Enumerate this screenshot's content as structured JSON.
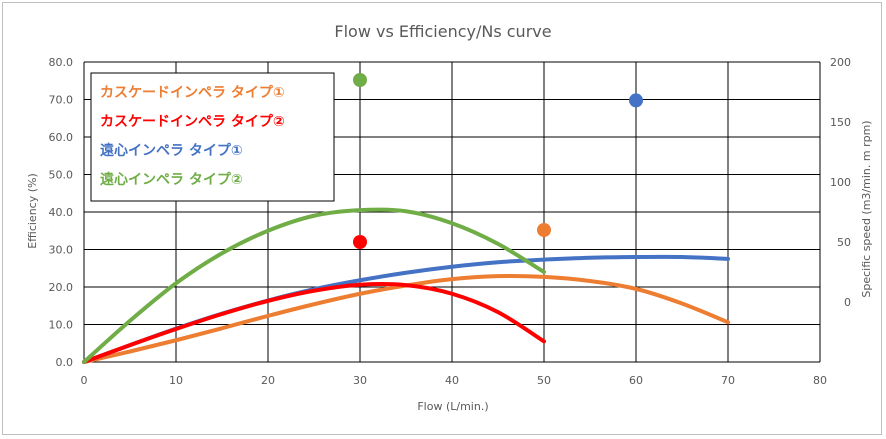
{
  "chart_data": {
    "type": "line",
    "title": "Flow vs Efficiency/Ns curve",
    "xlabel": "Flow (L/min.)",
    "ylabel": "Efficiency (%)",
    "y2label": "Specific speed (m3/min. m rpm)",
    "xlim": [
      0,
      80
    ],
    "ylim": [
      0,
      80
    ],
    "y2lim": [
      -50,
      200
    ],
    "x_ticks": [
      "0",
      "10",
      "20",
      "30",
      "40",
      "50",
      "60",
      "70",
      "80"
    ],
    "y_ticks": [
      "0.0",
      "10.0",
      "20.0",
      "30.0",
      "40.0",
      "50.0",
      "60.0",
      "70.0",
      "80.0"
    ],
    "y2_ticks": [
      "0",
      "50",
      "100",
      "150",
      "200"
    ],
    "grid": true,
    "legend_position": "top-left",
    "series": [
      {
        "name": "カスケードインペラ タイプ①",
        "color": "#ED7D31",
        "x": [
          0,
          5,
          10,
          15,
          20,
          25,
          30,
          35,
          40,
          45,
          50,
          55,
          60,
          65,
          70
        ],
        "y": [
          0,
          2.8,
          5.8,
          9.0,
          12.3,
          15.4,
          18.2,
          20.4,
          22.1,
          22.9,
          22.7,
          21.6,
          19.5,
          15.6,
          10.6
        ],
        "ns_x": 50,
        "ns_y": 60
      },
      {
        "name": "カスケードインペラ タイプ②",
        "color": "#FF0000",
        "x": [
          0,
          5,
          10,
          15,
          20,
          25,
          30,
          35,
          40,
          45,
          50
        ],
        "y": [
          0,
          4.5,
          8.8,
          12.8,
          16.3,
          19.0,
          20.6,
          20.5,
          18.2,
          13.3,
          5.5
        ],
        "ns_x": 30,
        "ns_y": 50
      },
      {
        "name": "遠心インペラ タイプ①",
        "color": "#4472C4",
        "x": [
          0,
          5,
          10,
          15,
          20,
          25,
          30,
          35,
          40,
          45,
          50,
          55,
          60,
          65,
          70
        ],
        "y": [
          0,
          4.5,
          8.9,
          12.9,
          16.4,
          19.4,
          21.8,
          23.8,
          25.4,
          26.6,
          27.3,
          27.8,
          28.0,
          28.0,
          27.5
        ],
        "ns_x": 60,
        "ns_y": 168
      },
      {
        "name": "遠心インペラ タイプ②",
        "color": "#70AD47",
        "x": [
          0,
          5,
          10,
          15,
          20,
          25,
          30,
          35,
          40,
          45,
          50
        ],
        "y": [
          0,
          11.0,
          21.0,
          29.0,
          35.0,
          39.0,
          40.5,
          40.2,
          37.0,
          31.5,
          24.0
        ],
        "ns_x": 30,
        "ns_y": 185
      }
    ]
  }
}
